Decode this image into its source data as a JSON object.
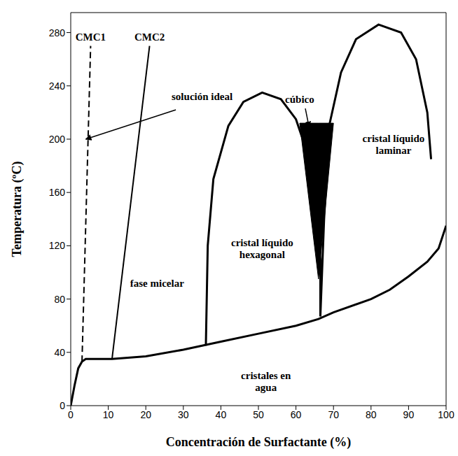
{
  "chart_data": {
    "type": "line",
    "xlabel": "Concentración de Surfactante (%)",
    "ylabel": "Temperatura (ºC)",
    "xlim": [
      0,
      100
    ],
    "ylim": [
      0,
      295
    ],
    "xticks": [
      0,
      10,
      20,
      30,
      40,
      50,
      60,
      70,
      80,
      90,
      100
    ],
    "yticks": [
      0,
      40,
      80,
      120,
      160,
      200,
      240,
      280
    ],
    "grid": false,
    "series": [
      {
        "name": "CMC1",
        "color": "#000000",
        "line_style": "dashed",
        "x": [
          3,
          5.3
        ],
        "values": [
          33,
          270
        ]
      },
      {
        "name": "CMC2",
        "color": "#000000",
        "line_style": "solid",
        "x": [
          11,
          21
        ],
        "values": [
          35,
          270
        ]
      },
      {
        "color": "#000000",
        "line_style": "solid",
        "x": [
          0,
          1,
          2,
          3,
          4,
          11,
          20,
          30,
          40,
          50,
          60,
          66,
          70,
          80,
          85,
          90,
          95,
          98,
          100
        ],
        "values": [
          0,
          15,
          28,
          33,
          35,
          35,
          37,
          42,
          48,
          54,
          60,
          65,
          70,
          80,
          87,
          97,
          108,
          118,
          135
        ]
      },
      {
        "color": "#000000",
        "line_style": "solid",
        "x": [
          36,
          36.5,
          38,
          42,
          46,
          51,
          56,
          60,
          63,
          65,
          66.5,
          66.5
        ],
        "values": [
          45,
          120,
          170,
          210,
          228,
          235,
          230,
          215,
          190,
          150,
          110,
          67
        ]
      },
      {
        "color": "#000000",
        "line_style": "solid",
        "x": [
          66.5,
          67.5,
          69,
          72,
          76,
          82,
          88,
          92,
          95,
          96
        ],
        "values": [
          67,
          140,
          212,
          250,
          275,
          286,
          280,
          260,
          220,
          185
        ]
      },
      {
        "type": "area",
        "color": "#000000",
        "x": [
          61,
          66,
          70
        ],
        "values": [
          212,
          212,
          212
        ],
        "low": [
          212,
          95,
          212
        ]
      }
    ],
    "annotations": [
      {
        "text": "solución ideal",
        "x": 35,
        "y": 232,
        "arrow_to": [
          4,
          200
        ],
        "arrow_from": [
          28,
          222
        ]
      },
      {
        "text": "fase micelar",
        "x": 23,
        "y": 92
      },
      {
        "text": "cristal líquido hexagonal",
        "x": 51,
        "y": 118
      },
      {
        "text": "cúbico",
        "x": 61,
        "y": 230,
        "arrow_from": [
          62.5,
          223
        ],
        "arrow_to": [
          63.5,
          209
        ]
      },
      {
        "text": "cristal líquido laminar",
        "x": 86,
        "y": 196
      },
      {
        "text": "cristales en agua",
        "x": 52,
        "y": 18
      }
    ]
  }
}
